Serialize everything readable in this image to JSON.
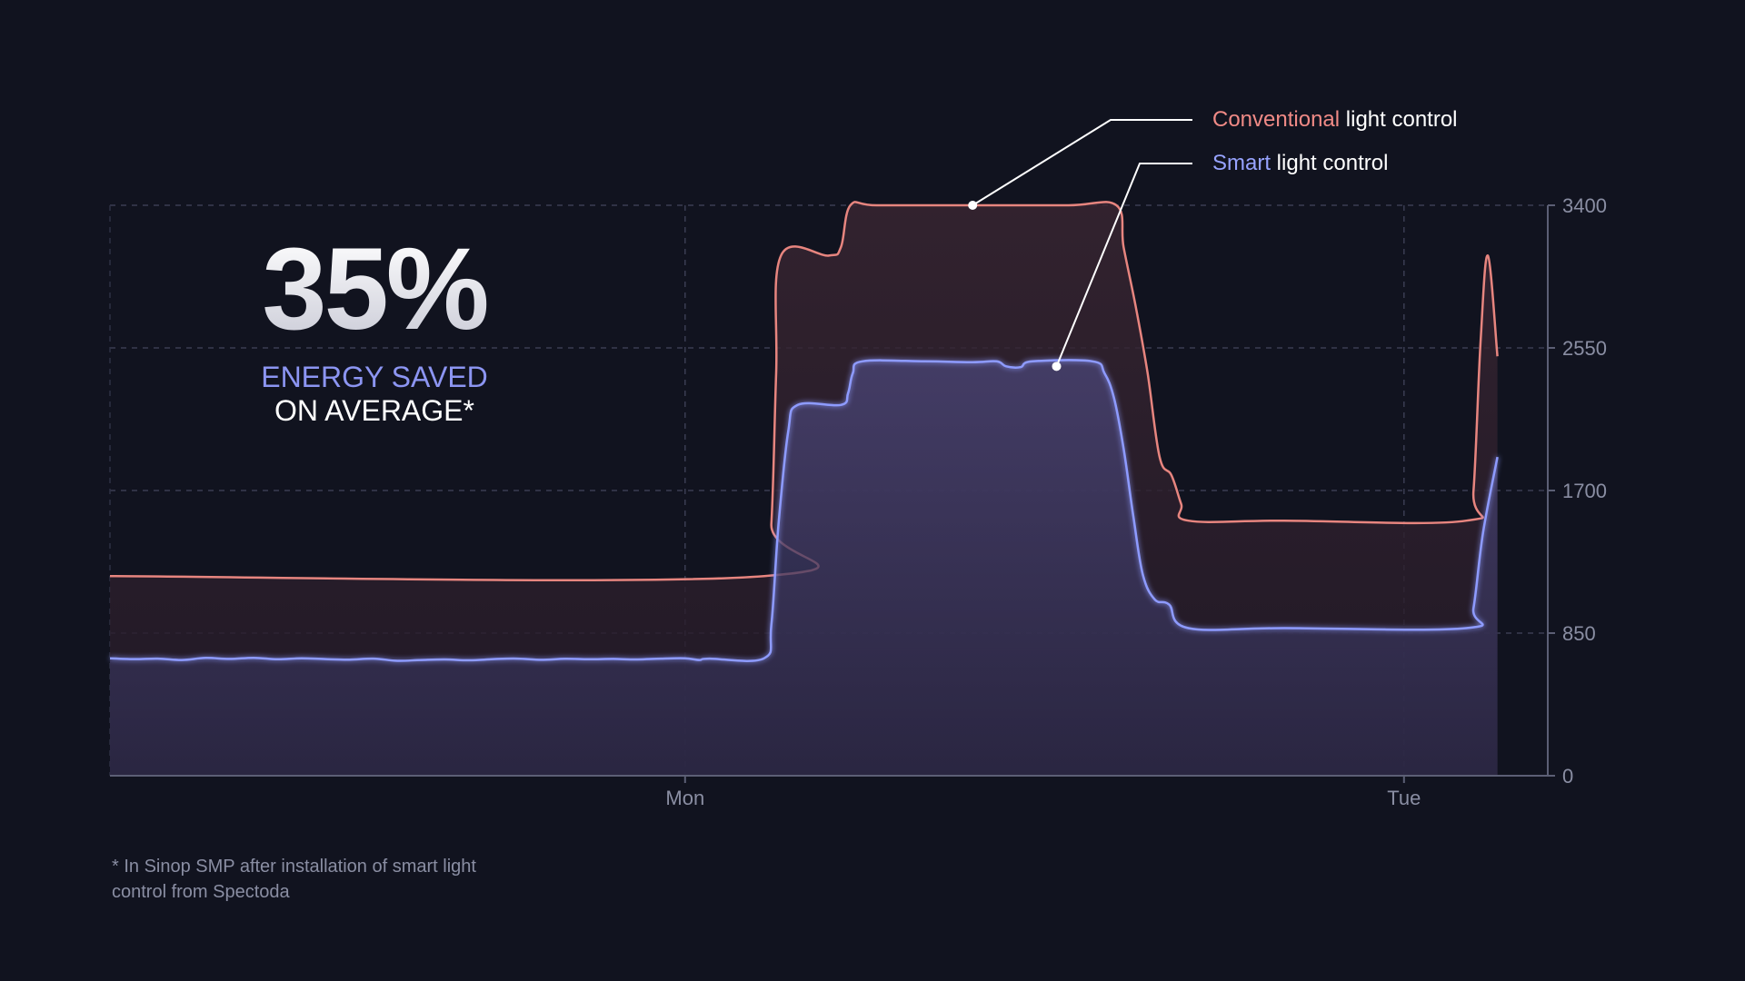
{
  "headline": {
    "value": "35%",
    "line1": "ENERGY SAVED",
    "line2": "ON AVERAGE*"
  },
  "footnote": "* In Sinop SMP after installation of smart light control from Spectoda",
  "legend": {
    "conventional_key": "Conventional",
    "conventional_rest": " light control",
    "smart_key": "Smart",
    "smart_rest": " light control"
  },
  "colors": {
    "background": "#11131f",
    "conventional": "#e7857f",
    "smart": "#8e9bff",
    "axis": "#8a8ea3"
  },
  "chart_data": {
    "type": "area",
    "x_axis": {
      "range": [
        0,
        60
      ],
      "ticks": [
        {
          "x": 24,
          "label": "Mon"
        },
        {
          "x": 54,
          "label": "Tue"
        }
      ]
    },
    "y_axis": {
      "range": [
        0,
        3400
      ],
      "ticks": [
        0,
        850,
        1700,
        2550,
        3400
      ],
      "position": "right"
    },
    "grid": true,
    "legend_position": "top-right",
    "series": [
      {
        "name": "Conventional light control",
        "points": [
          [
            0,
            1190
          ],
          [
            27.3,
            1190
          ],
          [
            27.6,
            1500
          ],
          [
            27.8,
            2400
          ],
          [
            28.0,
            3100
          ],
          [
            30.0,
            3100
          ],
          [
            30.5,
            3150
          ],
          [
            30.9,
            3400
          ],
          [
            32,
            3400
          ],
          [
            36,
            3400
          ],
          [
            40,
            3400
          ],
          [
            42.0,
            3400
          ],
          [
            42.3,
            3150
          ],
          [
            42.8,
            2800
          ],
          [
            43.3,
            2400
          ],
          [
            43.8,
            1900
          ],
          [
            44.3,
            1790
          ],
          [
            44.7,
            1620
          ],
          [
            45.0,
            1520
          ],
          [
            49,
            1520
          ],
          [
            56.6,
            1520
          ],
          [
            56.9,
            1700
          ],
          [
            57.2,
            2600
          ],
          [
            57.5,
            3100
          ],
          [
            57.9,
            2500
          ]
        ]
      },
      {
        "name": "Smart light control",
        "points": [
          [
            0,
            700
          ],
          [
            1,
            695
          ],
          [
            2,
            698
          ],
          [
            3,
            690
          ],
          [
            4,
            702
          ],
          [
            5,
            696
          ],
          [
            6,
            703
          ],
          [
            7,
            694
          ],
          [
            8,
            700
          ],
          [
            9,
            695
          ],
          [
            10,
            692
          ],
          [
            11,
            698
          ],
          [
            12,
            685
          ],
          [
            13,
            690
          ],
          [
            14,
            693
          ],
          [
            15,
            688
          ],
          [
            16,
            695
          ],
          [
            17,
            698
          ],
          [
            18,
            691
          ],
          [
            19,
            697
          ],
          [
            20,
            694
          ],
          [
            21,
            696
          ],
          [
            22,
            693
          ],
          [
            23,
            698
          ],
          [
            24,
            700
          ],
          [
            24.6,
            690
          ],
          [
            25.0,
            698
          ],
          [
            27.3,
            700
          ],
          [
            27.6,
            900
          ],
          [
            27.9,
            1500
          ],
          [
            28.3,
            2050
          ],
          [
            28.7,
            2210
          ],
          [
            30.5,
            2210
          ],
          [
            30.8,
            2280
          ],
          [
            31.0,
            2400
          ],
          [
            31.4,
            2470
          ],
          [
            34,
            2470
          ],
          [
            36,
            2465
          ],
          [
            37.0,
            2470
          ],
          [
            37.4,
            2440
          ],
          [
            38.0,
            2435
          ],
          [
            38.5,
            2470
          ],
          [
            41.0,
            2470
          ],
          [
            41.5,
            2400
          ],
          [
            41.9,
            2250
          ],
          [
            42.3,
            1950
          ],
          [
            42.7,
            1550
          ],
          [
            43.1,
            1200
          ],
          [
            43.6,
            1050
          ],
          [
            44.2,
            1020
          ],
          [
            45.0,
            880
          ],
          [
            49,
            880
          ],
          [
            56.6,
            880
          ],
          [
            56.9,
            1000
          ],
          [
            57.3,
            1450
          ],
          [
            57.9,
            1900
          ]
        ]
      }
    ]
  }
}
